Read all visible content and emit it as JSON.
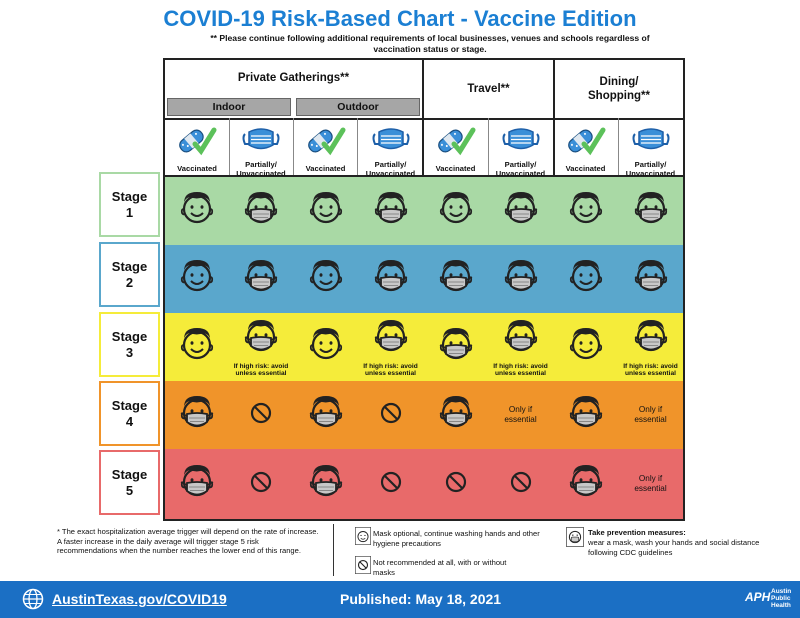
{
  "title": "COVID-19 Risk-Based Chart - Vaccine Edition",
  "subnote": "** Please continue following additional requirements of local businesses, venues and schools regardless of vaccination status or stage.",
  "categories": {
    "private": "Private Gatherings**",
    "indoor": "Indoor",
    "outdoor": "Outdoor",
    "travel": "Travel**",
    "dining": "Dining/ Shopping**"
  },
  "column_labels": {
    "vaccinated": "Vaccinated",
    "unvaccinated": "Partially/ Unvaccinated"
  },
  "stages": [
    {
      "label": "Stage",
      "num": "1",
      "color": "#a9d9a5",
      "border": "#a9d9a5",
      "cells": [
        "smile",
        "mask",
        "smile",
        "mask",
        "smile",
        "mask",
        "smile",
        "mask"
      ],
      "notes": [
        "",
        "",
        "",
        "",
        "",
        "",
        "",
        ""
      ]
    },
    {
      "label": "Stage",
      "num": "2",
      "color": "#5aa7cc",
      "border": "#5aa7cc",
      "cells": [
        "smile",
        "mask",
        "smile",
        "mask",
        "mask",
        "mask",
        "smile",
        "mask"
      ],
      "notes": [
        "",
        "",
        "",
        "",
        "",
        "",
        "",
        ""
      ]
    },
    {
      "label": "Stage",
      "num": "3",
      "color": "#f5ec3a",
      "border": "#f5ec3a",
      "cells": [
        "smile",
        "mask",
        "smile",
        "mask",
        "mask",
        "mask",
        "smile",
        "mask"
      ],
      "notes": [
        "",
        "If high risk: avoid unless essential",
        "",
        "If high risk: avoid unless essential",
        "",
        "If high risk: avoid unless essential",
        "",
        "If high risk: avoid unless essential"
      ]
    },
    {
      "label": "Stage",
      "num": "4",
      "color": "#f0942a",
      "border": "#f0942a",
      "cells": [
        "mask",
        "no",
        "mask",
        "no",
        "mask",
        "text",
        "mask",
        "text"
      ],
      "notes": [
        "",
        "",
        "",
        "",
        "",
        "Only if essential",
        "",
        "Only if essential"
      ]
    },
    {
      "label": "Stage",
      "num": "5",
      "color": "#e86a6a",
      "border": "#e86a6a",
      "cells": [
        "mask",
        "no",
        "mask",
        "no",
        "no",
        "no",
        "mask",
        "text"
      ],
      "notes": [
        "",
        "",
        "",
        "",
        "",
        "",
        "",
        "Only if essential"
      ]
    }
  ],
  "footnote": "* The exact hospitalization average trigger will depend on the rate of increase. A faster increase in the daily average will trigger stage 5 risk recommendations when the number reaches the lower end of this range.",
  "legend": {
    "optional": "Mask optional, continue washing hands and other hygiene precautions",
    "not_recommended": "Not recommended at all, with or without masks",
    "prevention_title": "Take prevention measures:",
    "prevention_body": "wear a mask, wash your hands and social distance following CDC guidelines"
  },
  "footer": {
    "link": "AustinTexas.gov/COVID19",
    "published": "Published: May 18, 2021",
    "aph_mark": "APH",
    "aph_text": "Austin Public Health"
  }
}
